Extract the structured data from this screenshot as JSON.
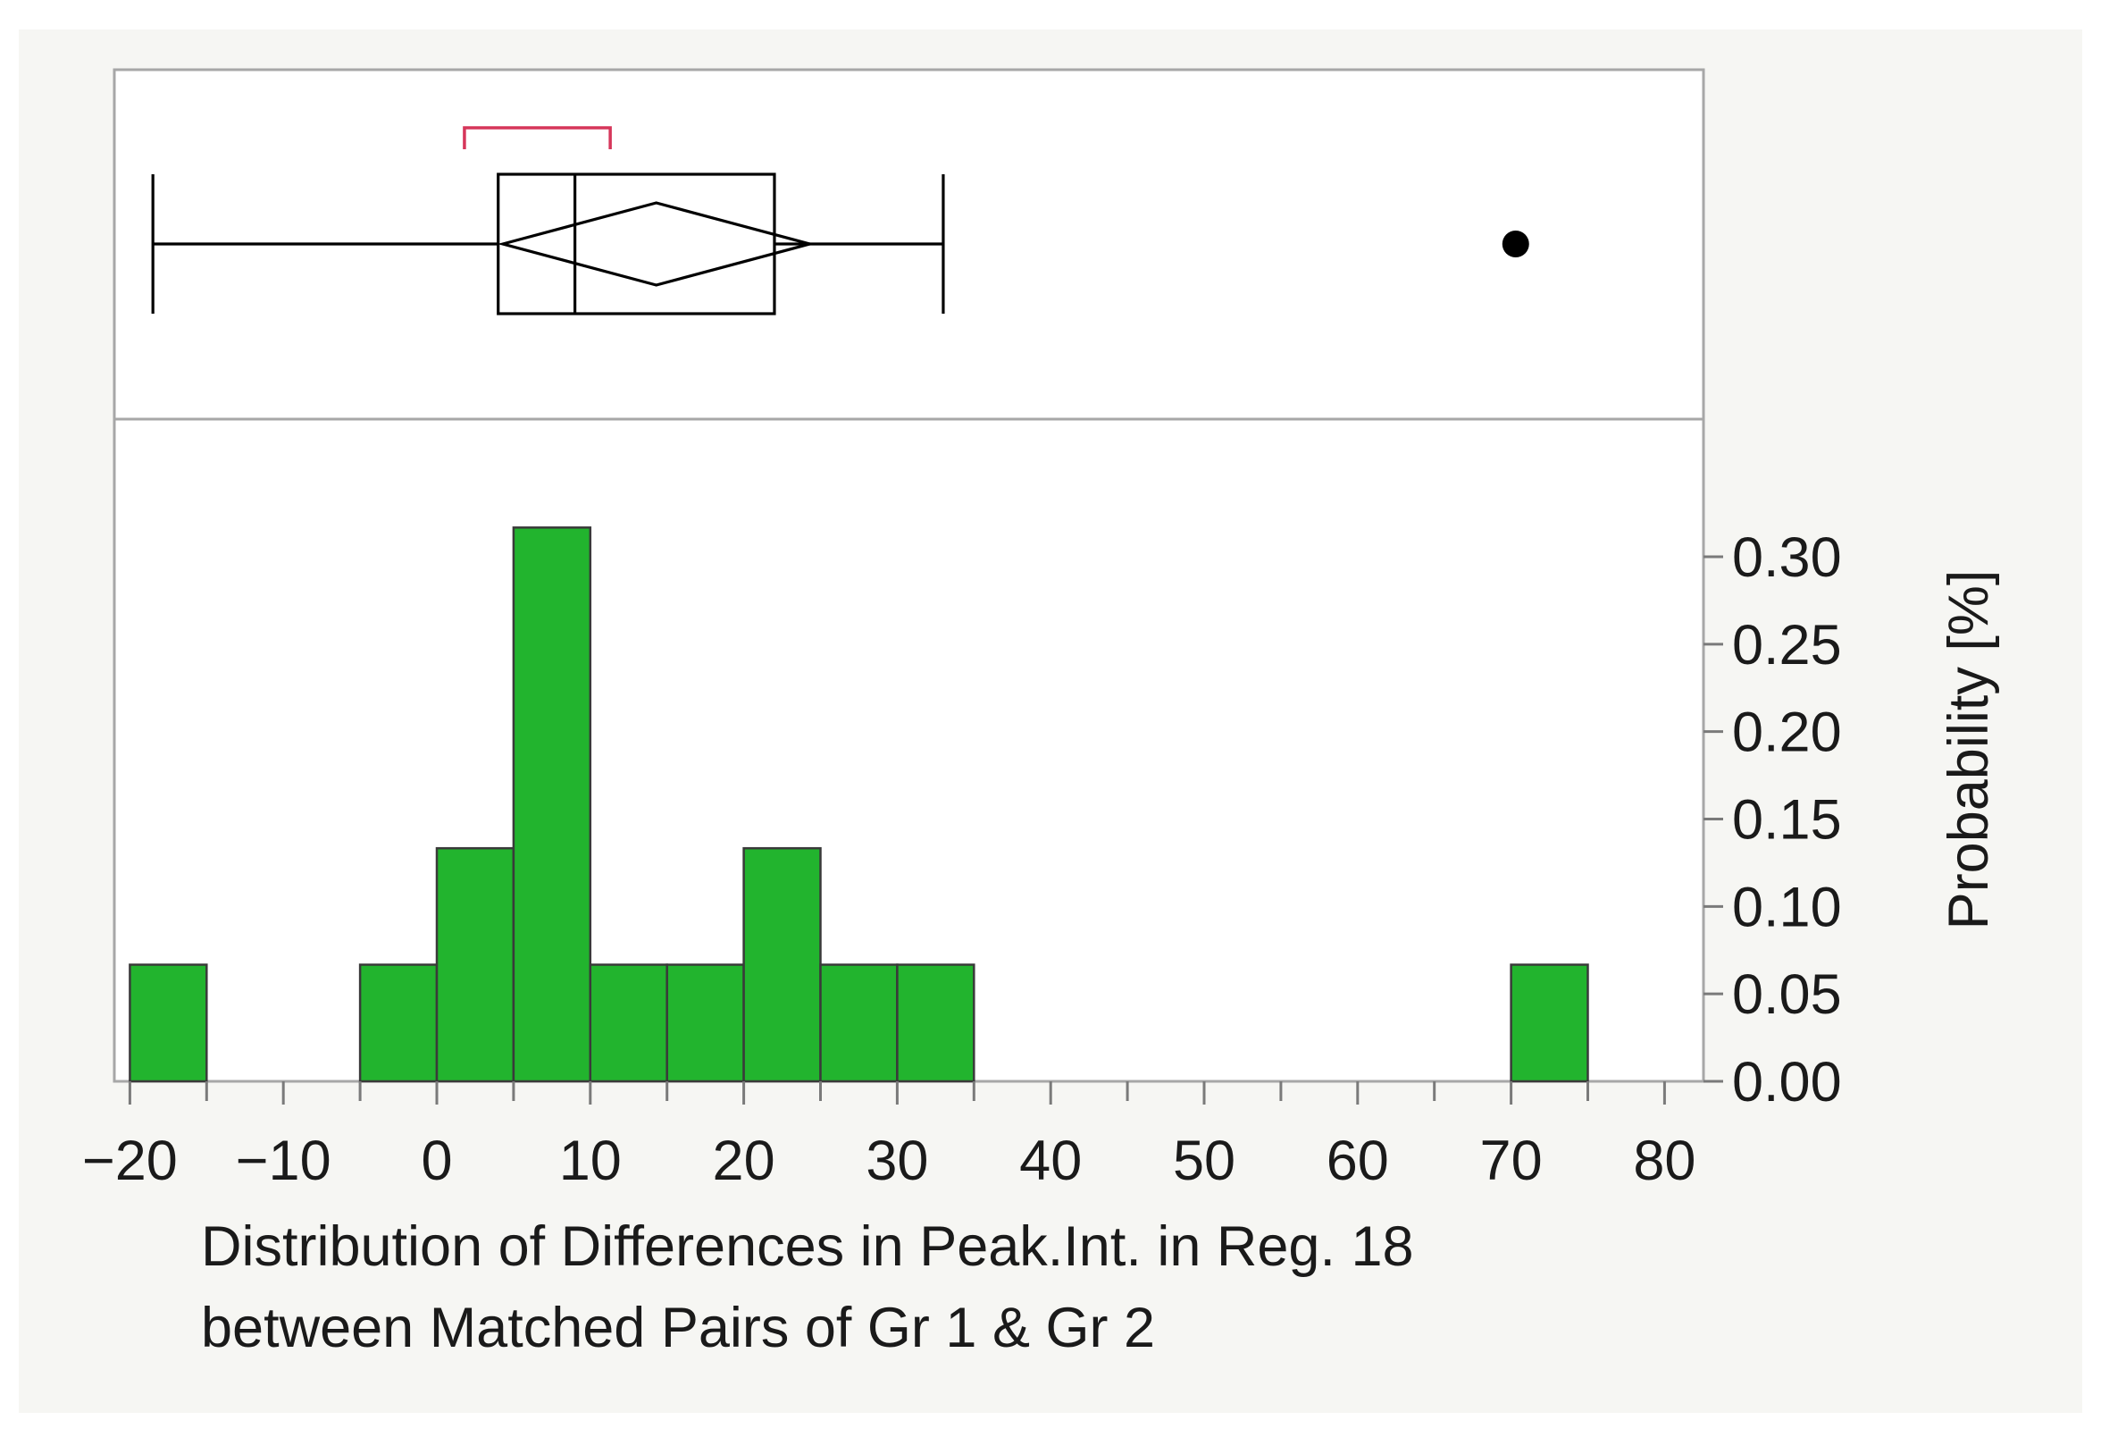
{
  "chart_data": {
    "type": "histogram",
    "x": {
      "label_lines": [
        "Distribution of Differences in Peak.Int. in Reg. 18",
        "between Matched Pairs of Gr 1 & Gr 2"
      ],
      "range": [
        -22,
        83
      ],
      "ticks": [
        -20,
        -10,
        0,
        10,
        20,
        30,
        40,
        50,
        60,
        70,
        80
      ],
      "tick_labels": [
        "−20",
        "−10",
        "0",
        "10",
        "20",
        "30",
        "40",
        "50",
        "60",
        "70",
        "80"
      ],
      "minor_tick_step": 5
    },
    "y": {
      "label": "Probability [%]",
      "range": [
        0,
        0.33
      ],
      "ticks": [
        0.0,
        0.05,
        0.1,
        0.15,
        0.2,
        0.25,
        0.3
      ],
      "tick_labels": [
        "0.00",
        "0.05",
        "0.10",
        "0.15",
        "0.20",
        "0.25",
        "0.30"
      ],
      "position": "right"
    },
    "bins": [
      {
        "start": -20,
        "end": -15,
        "value": 0.0667
      },
      {
        "start": -5,
        "end": 0,
        "value": 0.0667
      },
      {
        "start": 0,
        "end": 5,
        "value": 0.1333
      },
      {
        "start": 5,
        "end": 10,
        "value": 0.3167
      },
      {
        "start": 10,
        "end": 15,
        "value": 0.0667
      },
      {
        "start": 15,
        "end": 20,
        "value": 0.0667
      },
      {
        "start": 20,
        "end": 25,
        "value": 0.1333
      },
      {
        "start": 25,
        "end": 30,
        "value": 0.0667
      },
      {
        "start": 30,
        "end": 35,
        "value": 0.0667
      },
      {
        "start": 70,
        "end": 75,
        "value": 0.0667
      }
    ],
    "bar_color": "#22b42e",
    "outlier_box_plot": {
      "whisker_min": -18.5,
      "q1": 4,
      "median": 9,
      "q3": 22,
      "whisker_max": 33,
      "mean": 14.3,
      "mean_ci": [
        4.3,
        24.3
      ],
      "shortest_half": [
        1.8,
        11.3
      ],
      "shortest_half_color": "#d6365a",
      "outliers": [
        70.3
      ]
    },
    "grid": false
  }
}
